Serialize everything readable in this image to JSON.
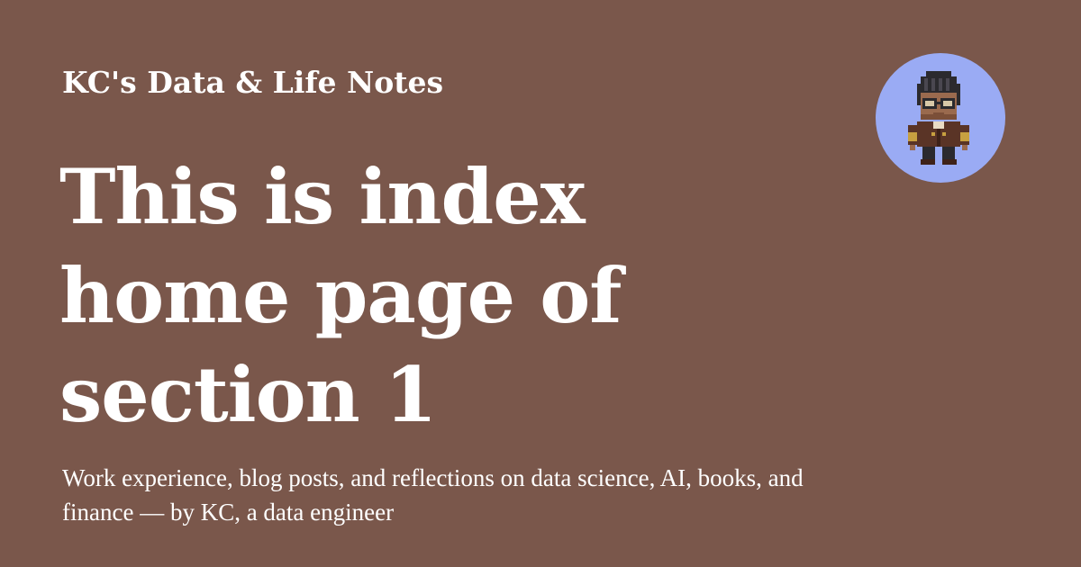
{
  "site": {
    "name": "KC's Data & Life Notes"
  },
  "page": {
    "title": "This is index home page of section 1",
    "description": "Work experience, blog posts, and reflections on data science, AI, books, and finance — by KC, a data engineer"
  },
  "avatar": {
    "icon": "pixel-art-character-with-glasses-icon"
  },
  "colors": {
    "background": "#7a574b",
    "text": "#ffffff",
    "avatar_bg": "#9aabf4",
    "avatar_skin": "#9a6a4e",
    "avatar_hair": "#2b2a2e",
    "avatar_jacket": "#5a3426",
    "avatar_gold": "#c7a040"
  }
}
